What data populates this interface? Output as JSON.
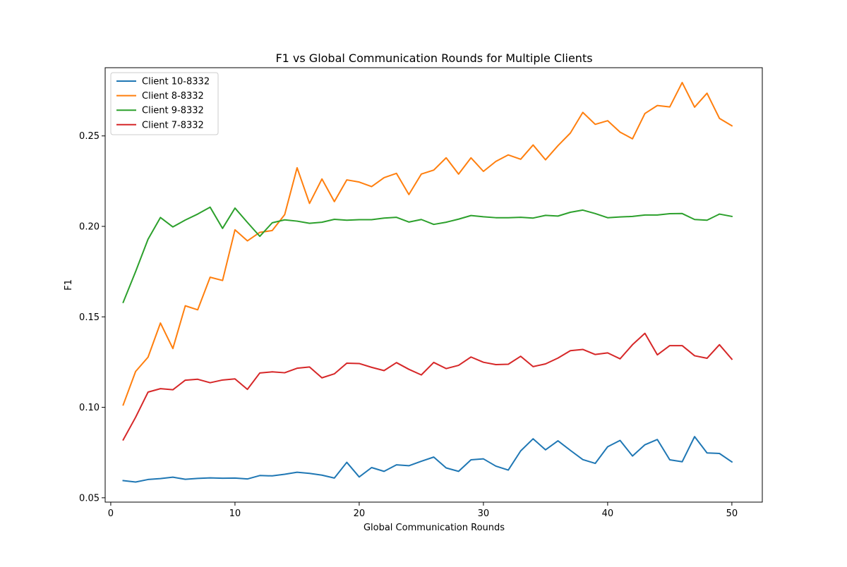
{
  "chart_data": {
    "type": "line",
    "title": "F1 vs Global Communication Rounds for Multiple Clients",
    "xlabel": "Global Communication Rounds",
    "ylabel": "F1",
    "xlim": [
      -0.45,
      52.45
    ],
    "ylim": [
      0.0476,
      0.2877
    ],
    "xticks": [
      0,
      10,
      20,
      30,
      40,
      50
    ],
    "xtick_labels": [
      "0",
      "10",
      "20",
      "30",
      "40",
      "50"
    ],
    "yticks": [
      0.05,
      0.1,
      0.15,
      0.2,
      0.25
    ],
    "ytick_labels": [
      "0.05",
      "0.10",
      "0.15",
      "0.20",
      "0.25"
    ],
    "grid": false,
    "legend_position": "top-left",
    "x": [
      1,
      2,
      3,
      4,
      5,
      6,
      7,
      8,
      9,
      10,
      11,
      12,
      13,
      14,
      15,
      16,
      17,
      18,
      19,
      20,
      21,
      22,
      23,
      24,
      25,
      26,
      27,
      28,
      29,
      30,
      31,
      32,
      33,
      34,
      35,
      36,
      37,
      38,
      39,
      40,
      41,
      42,
      43,
      44,
      45,
      46,
      47,
      48,
      49,
      50
    ],
    "series": [
      {
        "name": "Client 10-8332",
        "color": "#1f77b4",
        "values": [
          0.0595,
          0.0587,
          0.0601,
          0.0606,
          0.0614,
          0.0602,
          0.0607,
          0.061,
          0.0608,
          0.0609,
          0.0604,
          0.0623,
          0.0621,
          0.063,
          0.0641,
          0.0635,
          0.0625,
          0.0609,
          0.0696,
          0.0615,
          0.0667,
          0.0646,
          0.0682,
          0.0677,
          0.0702,
          0.0725,
          0.0665,
          0.0646,
          0.071,
          0.0715,
          0.0675,
          0.0653,
          0.0759,
          0.0826,
          0.0765,
          0.0815,
          0.0762,
          0.0711,
          0.069,
          0.0782,
          0.0817,
          0.0731,
          0.0793,
          0.0822,
          0.071,
          0.0699,
          0.0838,
          0.0748,
          0.0745,
          0.0698
        ]
      },
      {
        "name": "Client 8-8332",
        "color": "#ff7f0e",
        "values": [
          0.1013,
          0.1198,
          0.1277,
          0.1466,
          0.1325,
          0.1561,
          0.1539,
          0.1719,
          0.1701,
          0.1981,
          0.192,
          0.1967,
          0.1977,
          0.2065,
          0.2324,
          0.2127,
          0.2262,
          0.2137,
          0.2257,
          0.2245,
          0.222,
          0.2269,
          0.2293,
          0.2176,
          0.2289,
          0.2311,
          0.2379,
          0.2289,
          0.2379,
          0.2304,
          0.2359,
          0.2395,
          0.2371,
          0.245,
          0.2368,
          0.2446,
          0.2516,
          0.263,
          0.2564,
          0.2584,
          0.2521,
          0.2484,
          0.2624,
          0.2668,
          0.266,
          0.2795,
          0.2659,
          0.2736,
          0.2597,
          0.2556
        ]
      },
      {
        "name": "Client 9-8332",
        "color": "#2ca02c",
        "values": [
          0.158,
          0.175,
          0.1929,
          0.2049,
          0.1997,
          0.2035,
          0.2068,
          0.2106,
          0.1989,
          0.2101,
          0.2022,
          0.1945,
          0.202,
          0.2036,
          0.2029,
          0.2017,
          0.2023,
          0.2039,
          0.2034,
          0.2037,
          0.2037,
          0.2046,
          0.205,
          0.2024,
          0.2038,
          0.2011,
          0.2023,
          0.204,
          0.206,
          0.2053,
          0.2048,
          0.2048,
          0.205,
          0.2046,
          0.2061,
          0.2057,
          0.2078,
          0.209,
          0.2071,
          0.2048,
          0.2052,
          0.2055,
          0.2063,
          0.2063,
          0.207,
          0.2071,
          0.2038,
          0.2034,
          0.2068,
          0.2055
        ]
      },
      {
        "name": "Client 7-8332",
        "color": "#d62728",
        "values": [
          0.082,
          0.0945,
          0.1084,
          0.1103,
          0.1097,
          0.115,
          0.1155,
          0.1136,
          0.1151,
          0.1157,
          0.1099,
          0.119,
          0.1196,
          0.1191,
          0.1216,
          0.1223,
          0.1163,
          0.1185,
          0.1244,
          0.1242,
          0.1221,
          0.1203,
          0.1247,
          0.121,
          0.1179,
          0.1248,
          0.1214,
          0.1232,
          0.1278,
          0.1249,
          0.1236,
          0.1238,
          0.1282,
          0.1225,
          0.124,
          0.1272,
          0.1313,
          0.132,
          0.1292,
          0.1301,
          0.1268,
          0.1346,
          0.1409,
          0.129,
          0.1341,
          0.1341,
          0.1285,
          0.1271,
          0.1346,
          0.1266
        ]
      }
    ]
  }
}
